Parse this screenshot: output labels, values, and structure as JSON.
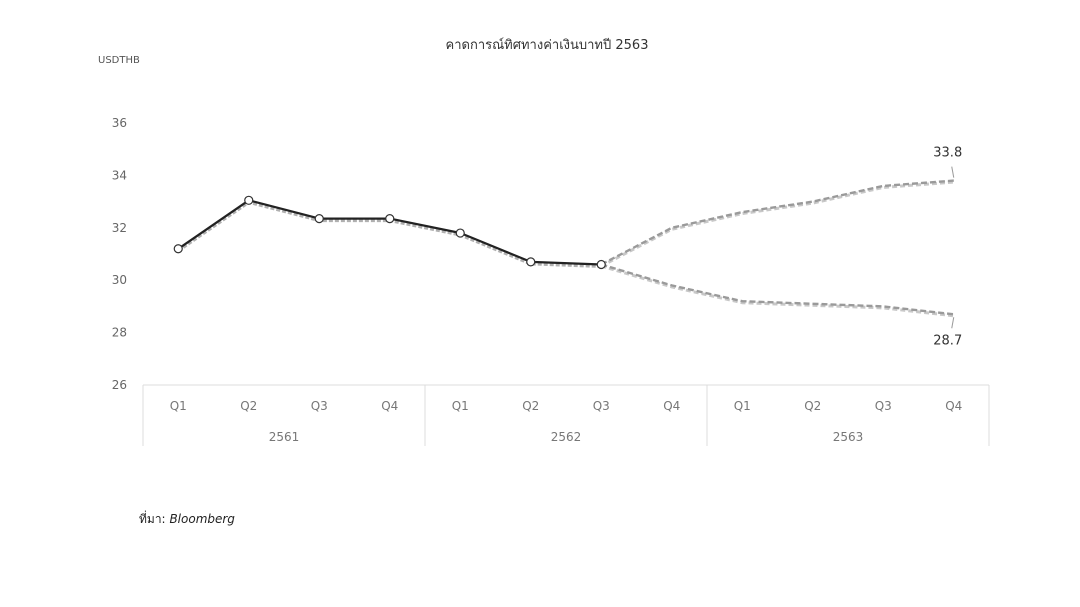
{
  "chart_data": {
    "type": "line",
    "title": "คาดการณ์ทิศทางค่าเงินบาทปี 2563",
    "ylabel": "USDTHB",
    "ylim": [
      26,
      36
    ],
    "yticks": [
      "26",
      "28",
      "30",
      "32",
      "34",
      "36"
    ],
    "categories": [
      "Q1",
      "Q2",
      "Q3",
      "Q4",
      "Q1",
      "Q2",
      "Q3",
      "Q4",
      "Q1",
      "Q2",
      "Q3",
      "Q4"
    ],
    "groups": [
      {
        "label": "2561",
        "count": 4
      },
      {
        "label": "2562",
        "count": 4
      },
      {
        "label": "2563",
        "count": 4
      }
    ],
    "grid": false,
    "legend": "none",
    "series": [
      {
        "style": "solid",
        "color": "#222222",
        "values": [
          31.2,
          33.05,
          32.35,
          32.35,
          31.8,
          30.7,
          30.6,
          null,
          null,
          null,
          null,
          null
        ]
      },
      {
        "style": "dashed",
        "color": "#9a9a9a",
        "values": [
          null,
          null,
          null,
          null,
          null,
          null,
          30.6,
          32.0,
          32.6,
          33.0,
          33.6,
          33.8
        ]
      },
      {
        "style": "dashed",
        "color": "#9a9a9a",
        "values": [
          null,
          null,
          null,
          null,
          null,
          null,
          30.6,
          29.8,
          29.2,
          29.1,
          29.0,
          28.7
        ]
      }
    ],
    "annotations": [
      {
        "text": "33.8",
        "series": 1,
        "index": 11,
        "position": "above"
      },
      {
        "text": "28.7",
        "series": 2,
        "index": 11,
        "position": "below"
      }
    ]
  },
  "source": {
    "label": "ที่มา:",
    "name": "Bloomberg"
  }
}
